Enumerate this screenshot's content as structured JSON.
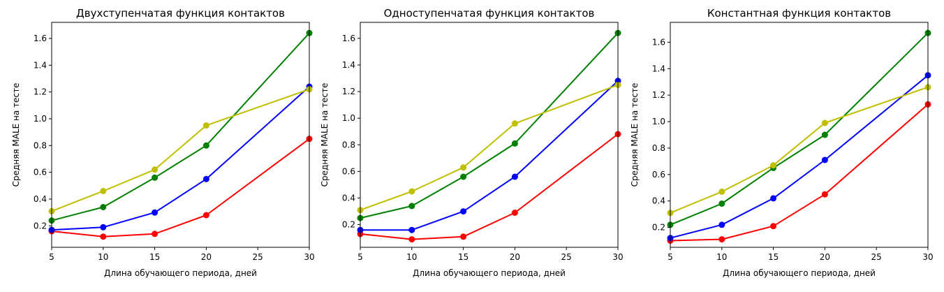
{
  "figure": {
    "xlabel": "Длина обучающего периода, дней",
    "ylabel": "Средняя MALE на тесте"
  },
  "chart_data": [
    {
      "type": "line",
      "title": "Двухступенчатая функция контактов",
      "xlabel": "Длина обучающего периода, дней",
      "ylabel": "Средняя MALE на тесте",
      "x": [
        5,
        10,
        15,
        20,
        30
      ],
      "xticks": [
        5,
        10,
        15,
        20,
        25,
        30
      ],
      "yticks": [
        0.2,
        0.4,
        0.6,
        0.8,
        1.0,
        1.2,
        1.4,
        1.6
      ],
      "xlim": [
        5,
        30
      ],
      "ylim": [
        0.04,
        1.72
      ],
      "grid": false,
      "series": [
        {
          "color": "#ff0000",
          "values": [
            0.16,
            0.12,
            0.14,
            0.28,
            0.85
          ]
        },
        {
          "color": "#0000ff",
          "values": [
            0.17,
            0.19,
            0.3,
            0.55,
            1.24
          ]
        },
        {
          "color": "#008000",
          "values": [
            0.24,
            0.34,
            0.56,
            0.8,
            1.64
          ]
        },
        {
          "color": "#bfbf00",
          "values": [
            0.31,
            0.46,
            0.62,
            0.95,
            1.22
          ]
        }
      ]
    },
    {
      "type": "line",
      "title": "Одноступенчатая функция контактов",
      "xlabel": "Длина обучающего периода, дней",
      "ylabel": "Средняя MALE на тесте",
      "x": [
        5,
        10,
        15,
        20,
        30
      ],
      "xticks": [
        5,
        10,
        15,
        20,
        25,
        30
      ],
      "yticks": [
        0.2,
        0.4,
        0.6,
        0.8,
        1.0,
        1.2,
        1.4,
        1.6
      ],
      "xlim": [
        5,
        30
      ],
      "ylim": [
        0.03,
        1.72
      ],
      "grid": false,
      "series": [
        {
          "color": "#ff0000",
          "values": [
            0.13,
            0.09,
            0.11,
            0.29,
            0.88
          ]
        },
        {
          "color": "#0000ff",
          "values": [
            0.16,
            0.16,
            0.3,
            0.56,
            1.28
          ]
        },
        {
          "color": "#008000",
          "values": [
            0.25,
            0.34,
            0.56,
            0.81,
            1.64
          ]
        },
        {
          "color": "#bfbf00",
          "values": [
            0.31,
            0.45,
            0.63,
            0.96,
            1.25
          ]
        }
      ]
    },
    {
      "type": "line",
      "title": "Константная функция контактов",
      "xlabel": "Длина обучающего периода, дней",
      "ylabel": "Средняя MALE на тесте",
      "x": [
        5,
        10,
        15,
        20,
        30
      ],
      "xticks": [
        5,
        10,
        15,
        20,
        25,
        30
      ],
      "yticks": [
        0.2,
        0.4,
        0.6,
        0.8,
        1.0,
        1.2,
        1.4,
        1.6
      ],
      "xlim": [
        5,
        30
      ],
      "ylim": [
        0.05,
        1.75
      ],
      "grid": false,
      "series": [
        {
          "color": "#ff0000",
          "values": [
            0.1,
            0.11,
            0.21,
            0.45,
            1.13
          ]
        },
        {
          "color": "#0000ff",
          "values": [
            0.12,
            0.22,
            0.42,
            0.71,
            1.35
          ]
        },
        {
          "color": "#008000",
          "values": [
            0.22,
            0.38,
            0.65,
            0.9,
            1.67
          ]
        },
        {
          "color": "#bfbf00",
          "values": [
            0.31,
            0.47,
            0.67,
            0.99,
            1.26
          ]
        }
      ]
    }
  ]
}
